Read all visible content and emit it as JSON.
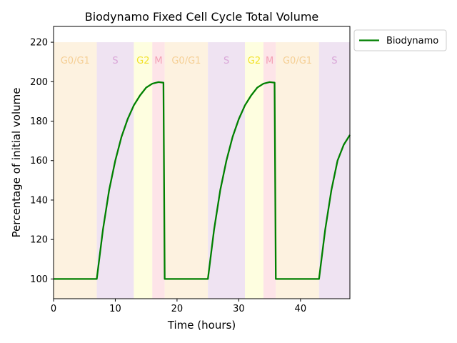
{
  "chart_data": {
    "type": "line",
    "title": "Biodynamo Fixed Cell Cycle Total Volume",
    "xlabel": "Time (hours)",
    "ylabel": "Percentage of initial volume",
    "xlim": [
      0,
      48
    ],
    "ylim": [
      90,
      228
    ],
    "x_ticks": [
      0,
      10,
      20,
      30,
      40
    ],
    "y_ticks": [
      100,
      120,
      140,
      160,
      180,
      200,
      220
    ],
    "grid": false,
    "legend_position": "outside-top-right",
    "phase_label_y": 211,
    "phase_band_top": 220,
    "phases": [
      {
        "label": "G0/G1",
        "start": 0,
        "end": 7,
        "color": "#fdf2e0",
        "text_color": "#f5cf95"
      },
      {
        "label": "S",
        "start": 7,
        "end": 13,
        "color": "#efe3f2",
        "text_color": "#d9a5d8"
      },
      {
        "label": "G2",
        "start": 13,
        "end": 16,
        "color": "#fefee0",
        "text_color": "#f2e22c"
      },
      {
        "label": "M",
        "start": 16,
        "end": 18,
        "color": "#fde4e8",
        "text_color": "#f3a0b4"
      },
      {
        "label": "G0/G1",
        "start": 18,
        "end": 25,
        "color": "#fdf2e0",
        "text_color": "#f5cf95"
      },
      {
        "label": "S",
        "start": 25,
        "end": 31,
        "color": "#efe3f2",
        "text_color": "#d9a5d8"
      },
      {
        "label": "G2",
        "start": 31,
        "end": 34,
        "color": "#fefee0",
        "text_color": "#f2e22c"
      },
      {
        "label": "M",
        "start": 34,
        "end": 36,
        "color": "#fde4e8",
        "text_color": "#f3a0b4"
      },
      {
        "label": "G0/G1",
        "start": 36,
        "end": 43,
        "color": "#fdf2e0",
        "text_color": "#f5cf95"
      },
      {
        "label": "S",
        "start": 43,
        "end": 48,
        "color": "#efe3f2",
        "text_color": "#d9a5d8"
      }
    ],
    "series": [
      {
        "name": "Biodynamo",
        "color": "#008000",
        "x": [
          0,
          7,
          8,
          9,
          10,
          11,
          12,
          13,
          14,
          15,
          16,
          17,
          17.8,
          18,
          25,
          26,
          27,
          28,
          29,
          30,
          31,
          32,
          33,
          34,
          35,
          35.8,
          36,
          43,
          44,
          45,
          46,
          47,
          48
        ],
        "y": [
          100,
          100,
          125,
          145,
          160,
          172,
          181,
          188,
          193,
          197,
          199,
          199.8,
          199.5,
          100,
          100,
          125,
          145,
          160,
          172,
          181,
          188,
          193,
          197,
          199,
          199.8,
          199.5,
          100,
          100,
          125,
          145,
          160,
          168,
          173
        ]
      }
    ]
  }
}
